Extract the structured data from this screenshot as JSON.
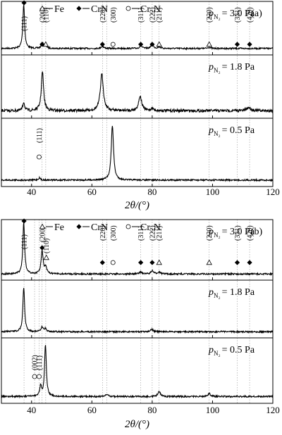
{
  "chart_data": [
    {
      "id": "a",
      "type": "line",
      "panel_label": "(a)",
      "xlabel": "2θ/(°)",
      "xlim": [
        30,
        120
      ],
      "xticks": [
        40,
        60,
        80,
        100,
        120
      ],
      "legend": {
        "placement": "top",
        "items": [
          {
            "marker": "triangle-open",
            "text": "Fe"
          },
          {
            "marker": "diamond-filled",
            "text": "CrN"
          },
          {
            "marker": "circle-open",
            "text": "Cr₂N"
          }
        ]
      },
      "reference_lines_deg": [
        37.5,
        43.5,
        44.7,
        63.5,
        65.0,
        76.2,
        80.0,
        82.3,
        98.9,
        108.2,
        112.3
      ],
      "subplots": [
        {
          "label_base": "p",
          "label_sub": "N₂",
          "label_value": "= 3.0 Pa",
          "annotations": [
            {
              "x": 37.5,
              "text": "(111)",
              "marker": "diamond-filled"
            },
            {
              "x": 43.5,
              "text": "(200)",
              "marker": "diamond-filled"
            },
            {
              "x": 44.7,
              "text": "(110)",
              "marker": "triangle-open"
            },
            {
              "x": 63.5,
              "text": "(220)",
              "marker": "diamond-filled"
            },
            {
              "x": 67.0,
              "text": "(300)",
              "marker": "circle-open"
            },
            {
              "x": 76.2,
              "text": "(311)",
              "marker": "diamond-filled"
            },
            {
              "x": 80.0,
              "text": "(222)",
              "marker": "diamond-filled"
            },
            {
              "x": 82.3,
              "text": "(211)",
              "marker": "triangle-open"
            },
            {
              "x": 98.9,
              "text": "(220)",
              "marker": "triangle-open"
            },
            {
              "x": 108.2,
              "text": "(331)",
              "marker": "diamond-filled"
            },
            {
              "x": 112.3,
              "text": "(420)",
              "marker": "diamond-filled"
            }
          ],
          "baseline": 0.05,
          "peaks": [
            {
              "x": 37.4,
              "h": 1.0,
              "w": 0.35
            },
            {
              "x": 43.6,
              "h": 0.12,
              "w": 0.4
            },
            {
              "x": 44.6,
              "h": 0.08,
              "w": 0.4
            },
            {
              "x": 63.5,
              "h": 0.05,
              "w": 0.5
            },
            {
              "x": 76.2,
              "h": 0.06,
              "w": 0.5
            },
            {
              "x": 80.0,
              "h": 0.08,
              "w": 0.5
            },
            {
              "x": 82.3,
              "h": 0.04,
              "w": 0.5
            },
            {
              "x": 98.9,
              "h": 0.03,
              "w": 0.5
            }
          ]
        },
        {
          "label_base": "p",
          "label_sub": "N₂",
          "label_value": "= 1.8 Pa",
          "annotations": [],
          "baseline": 0.1,
          "peaks": [
            {
              "x": 37.4,
              "h": 0.18,
              "w": 0.35
            },
            {
              "x": 43.6,
              "h": 0.8,
              "w": 0.45
            },
            {
              "x": 63.3,
              "h": 0.75,
              "w": 0.6
            },
            {
              "x": 76.0,
              "h": 0.3,
              "w": 0.6
            },
            {
              "x": 80.0,
              "h": 0.05,
              "w": 0.5
            },
            {
              "x": 112.0,
              "h": 0.07,
              "w": 0.8
            }
          ]
        },
        {
          "label_base": "p",
          "label_sub": "N₂",
          "label_value": "= 0.5 Pa",
          "annotations": [
            {
              "x": 42.5,
              "text": "(111)",
              "marker": "circle-open"
            }
          ],
          "baseline": 0.04,
          "peaks": [
            {
              "x": 42.6,
              "h": 0.04,
              "w": 0.4
            },
            {
              "x": 66.8,
              "h": 1.0,
              "w": 0.45
            }
          ]
        }
      ]
    },
    {
      "id": "b",
      "type": "line",
      "panel_label": "(b)",
      "xlabel": "2θ/(°)",
      "xlim": [
        30,
        120
      ],
      "xticks": [
        40,
        60,
        80,
        100,
        120
      ],
      "legend": {
        "placement": "top",
        "items": [
          {
            "marker": "triangle-open",
            "text": "Fe"
          },
          {
            "marker": "diamond-filled",
            "text": "CrN"
          },
          {
            "marker": "circle-open",
            "text": "Cr₂N"
          }
        ]
      },
      "reference_lines_deg": [
        37.5,
        41.0,
        42.5,
        43.5,
        44.7,
        63.5,
        65.0,
        76.2,
        80.0,
        82.3,
        98.9,
        108.2,
        112.3
      ],
      "subplots": [
        {
          "label_base": "p",
          "label_sub": "N₂",
          "label_value": "= 3.0 Pa",
          "annotations": [
            {
              "x": 37.5,
              "text": "(111)",
              "marker": "diamond-filled"
            },
            {
              "x": 43.5,
              "text": "(200)",
              "marker": "diamond-filled"
            },
            {
              "x": 44.9,
              "text": "(110)",
              "marker": "triangle-open"
            },
            {
              "x": 63.5,
              "text": "(220)",
              "marker": "diamond-filled"
            },
            {
              "x": 67.0,
              "text": "(300)",
              "marker": "circle-open"
            },
            {
              "x": 76.2,
              "text": "(311)",
              "marker": "diamond-filled"
            },
            {
              "x": 80.0,
              "text": "(222)",
              "marker": "diamond-filled"
            },
            {
              "x": 82.3,
              "text": "(211)",
              "marker": "triangle-open"
            },
            {
              "x": 98.9,
              "text": "(220)",
              "marker": "triangle-open"
            },
            {
              "x": 108.2,
              "text": "(331)",
              "marker": "diamond-filled"
            },
            {
              "x": 112.3,
              "text": "(420)",
              "marker": "diamond-filled"
            }
          ],
          "baseline": 0.03,
          "peaks": [
            {
              "x": 37.4,
              "h": 1.0,
              "w": 0.35
            },
            {
              "x": 43.5,
              "h": 0.45,
              "w": 0.4
            },
            {
              "x": 44.7,
              "h": 0.12,
              "w": 0.4
            },
            {
              "x": 76.2,
              "h": 0.04,
              "w": 0.5
            },
            {
              "x": 80.0,
              "h": 0.06,
              "w": 0.5
            },
            {
              "x": 82.3,
              "h": 0.04,
              "w": 0.5
            }
          ]
        },
        {
          "label_base": "p",
          "label_sub": "N₂",
          "label_value": "= 1.8 Pa",
          "annotations": [],
          "baseline": 0.03,
          "peaks": [
            {
              "x": 37.4,
              "h": 1.0,
              "w": 0.35
            },
            {
              "x": 43.5,
              "h": 0.1,
              "w": 0.4
            },
            {
              "x": 44.6,
              "h": 0.07,
              "w": 0.4
            },
            {
              "x": 79.8,
              "h": 0.06,
              "w": 0.5
            }
          ]
        },
        {
          "label_base": "p",
          "label_sub": "N₂",
          "label_value": "= 0.5 Pa",
          "annotations": [
            {
              "x": 41.0,
              "text": "(002)",
              "marker": "circle-open"
            },
            {
              "x": 42.5,
              "text": "(111)",
              "marker": "circle-open"
            }
          ],
          "baseline": 0.06,
          "peaks": [
            {
              "x": 43.0,
              "h": 0.2,
              "w": 0.35
            },
            {
              "x": 44.6,
              "h": 1.0,
              "w": 0.35
            },
            {
              "x": 65.0,
              "h": 0.04,
              "w": 0.5
            },
            {
              "x": 82.3,
              "h": 0.1,
              "w": 0.5
            },
            {
              "x": 98.9,
              "h": 0.06,
              "w": 0.5
            }
          ]
        }
      ]
    }
  ]
}
